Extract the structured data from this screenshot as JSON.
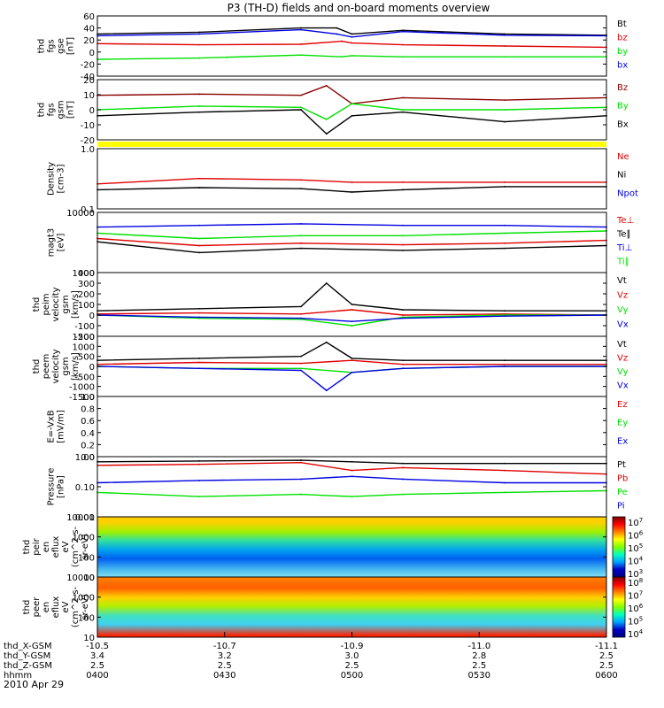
{
  "title": "P3 (TH-D) fields and on-board moments overview",
  "date": "2010 Apr 29",
  "colors": {
    "black": "#000000",
    "red": "#e00000",
    "green": "#00e000",
    "blue": "#0000e0",
    "darkred": "#8b0000",
    "yellow": "#ffff00"
  },
  "chart_data": [
    {
      "type": "line",
      "id": "fgs",
      "ylabel": [
        "thd",
        "fgs",
        "gse",
        "[nT]"
      ],
      "yticks": [
        "60",
        "40",
        "20",
        "0",
        "-20",
        "-40"
      ],
      "ylim": [
        -40,
        60
      ],
      "legend": [
        {
          "label": "Bt",
          "color": "#000000"
        },
        {
          "label": "bz",
          "color": "#e00000"
        },
        {
          "label": "by",
          "color": "#00e000"
        },
        {
          "label": "bx",
          "color": "#0000e0"
        }
      ],
      "series": [
        {
          "name": "Bt",
          "color": "#000000",
          "x": [
            0,
            0.2,
            0.4,
            0.47,
            0.5,
            0.6,
            0.8,
            1
          ],
          "y": [
            30,
            33,
            40,
            40,
            30,
            36,
            30,
            28
          ]
        },
        {
          "name": "bz",
          "color": "#e00000",
          "x": [
            0,
            0.2,
            0.4,
            0.48,
            0.5,
            0.6,
            0.8,
            1
          ],
          "y": [
            14,
            12,
            13,
            18,
            15,
            12,
            10,
            8
          ]
        },
        {
          "name": "by",
          "color": "#00e000",
          "x": [
            0,
            0.2,
            0.4,
            0.48,
            0.5,
            0.6,
            0.8,
            1
          ],
          "y": [
            -12,
            -10,
            -5,
            -8,
            -6,
            -8,
            -8,
            -8
          ]
        },
        {
          "name": "bx",
          "color": "#0000e0",
          "x": [
            0,
            0.2,
            0.4,
            0.47,
            0.5,
            0.6,
            0.8,
            1
          ],
          "y": [
            27,
            30,
            37,
            30,
            25,
            34,
            28,
            27
          ]
        }
      ]
    },
    {
      "type": "line",
      "id": "fgs_gsm",
      "ylabel": [
        "thd",
        "fgs",
        "gsm",
        "[nT]"
      ],
      "yticks": [
        "20",
        "10",
        "0",
        "-10",
        "-20"
      ],
      "ylim": [
        -25,
        25
      ],
      "legend": [
        {
          "label": "Bz",
          "color": "#8b0000"
        },
        {
          "label": "By",
          "color": "#00e000"
        },
        {
          "label": "Bx",
          "color": "#000000"
        }
      ],
      "series": [
        {
          "name": "Bz",
          "color": "#8b0000",
          "x": [
            0,
            0.2,
            0.4,
            0.45,
            0.5,
            0.6,
            0.8,
            1
          ],
          "y": [
            12,
            13,
            12,
            20,
            5,
            10,
            8,
            10
          ]
        },
        {
          "name": "By",
          "color": "#00e000",
          "x": [
            0,
            0.2,
            0.4,
            0.45,
            0.5,
            0.6,
            0.8,
            1
          ],
          "y": [
            0,
            3,
            2,
            -8,
            5,
            0,
            0,
            2
          ]
        },
        {
          "name": "Bx",
          "color": "#000000",
          "x": [
            0,
            0.2,
            0.4,
            0.45,
            0.5,
            0.6,
            0.8,
            1
          ],
          "y": [
            -5,
            -2,
            0,
            -20,
            -5,
            -2,
            -10,
            -5
          ]
        }
      ]
    },
    {
      "type": "line",
      "id": "density",
      "ylabel": [
        "Density",
        "[cm-3]"
      ],
      "yticks": [
        "1.0",
        "0.1"
      ],
      "ylim": [
        0.1,
        1.2
      ],
      "legend": [
        {
          "label": "Ne",
          "color": "#e00000"
        },
        {
          "label": "Ni",
          "color": "#000000"
        },
        {
          "label": "Npot",
          "color": "#0000e0"
        }
      ],
      "series": [
        {
          "name": "Ne",
          "color": "#e00000",
          "x": [
            0,
            0.2,
            0.4,
            0.5,
            0.6,
            0.8,
            1
          ],
          "y": [
            0.28,
            0.35,
            0.33,
            0.3,
            0.3,
            0.3,
            0.3
          ]
        },
        {
          "name": "Ni",
          "color": "#000000",
          "x": [
            0,
            0.2,
            0.4,
            0.5,
            0.6,
            0.8,
            1
          ],
          "y": [
            0.22,
            0.24,
            0.23,
            0.2,
            0.22,
            0.25,
            0.25
          ]
        }
      ]
    },
    {
      "type": "line",
      "id": "temperature",
      "ylabel": [
        "magt3",
        "[eV]"
      ],
      "yticks": [
        "10000",
        "1000"
      ],
      "ylim": [
        700,
        12000
      ],
      "legend": [
        {
          "label": "Te⊥",
          "color": "#e00000"
        },
        {
          "label": "Te∥",
          "color": "#000000"
        },
        {
          "label": "Ti⊥",
          "color": "#0000e0"
        },
        {
          "label": "Ti∥",
          "color": "#00e000"
        }
      ],
      "series": [
        {
          "name": "Ti⊥",
          "color": "#0000e0",
          "x": [
            0,
            0.2,
            0.4,
            0.6,
            0.8,
            1
          ],
          "y": [
            6000,
            6500,
            7000,
            6500,
            6500,
            6000
          ]
        },
        {
          "name": "Ti∥",
          "color": "#00e000",
          "x": [
            0,
            0.2,
            0.4,
            0.6,
            0.8,
            1
          ],
          "y": [
            4500,
            3500,
            4000,
            4000,
            4500,
            5000
          ]
        },
        {
          "name": "Te⊥",
          "color": "#e00000",
          "x": [
            0,
            0.2,
            0.4,
            0.6,
            0.8,
            1
          ],
          "y": [
            3500,
            2500,
            2800,
            2600,
            2800,
            3200
          ]
        },
        {
          "name": "Te∥",
          "color": "#000000",
          "x": [
            0,
            0.2,
            0.4,
            0.6,
            0.8,
            1
          ],
          "y": [
            3000,
            1800,
            2200,
            2000,
            2200,
            2500
          ]
        }
      ]
    },
    {
      "type": "line",
      "id": "peim_velocity",
      "ylabel": [
        "thd",
        "peim",
        "velocity",
        "gsm",
        "[km/s]"
      ],
      "yticks": [
        "400",
        "300",
        "200",
        "100",
        "0",
        "-100",
        "-200"
      ],
      "ylim": [
        -200,
        400
      ],
      "legend": [
        {
          "label": "Vt",
          "color": "#000000"
        },
        {
          "label": "Vz",
          "color": "#e00000"
        },
        {
          "label": "Vy",
          "color": "#00e000"
        },
        {
          "label": "Vx",
          "color": "#0000e0"
        }
      ],
      "series": [
        {
          "name": "Vt",
          "color": "#000000",
          "x": [
            0,
            0.2,
            0.4,
            0.45,
            0.5,
            0.6,
            0.8,
            1
          ],
          "y": [
            40,
            60,
            80,
            300,
            100,
            50,
            40,
            40
          ]
        },
        {
          "name": "Vz",
          "color": "#e00000",
          "x": [
            0,
            0.2,
            0.4,
            0.5,
            0.6,
            0.8,
            1
          ],
          "y": [
            10,
            20,
            10,
            50,
            0,
            10,
            0
          ]
        },
        {
          "name": "Vy",
          "color": "#00e000",
          "x": [
            0,
            0.2,
            0.4,
            0.5,
            0.6,
            0.8,
            1
          ],
          "y": [
            0,
            -30,
            -40,
            -100,
            -20,
            0,
            0
          ]
        },
        {
          "name": "Vx",
          "color": "#0000e0",
          "x": [
            0,
            0.2,
            0.4,
            0.5,
            0.6,
            0.8,
            1
          ],
          "y": [
            0,
            -20,
            -30,
            -60,
            -30,
            -10,
            0
          ]
        }
      ]
    },
    {
      "type": "line",
      "id": "peem_velocity",
      "ylabel": [
        "thd",
        "peem",
        "velocity",
        "gsm",
        "[km/s]"
      ],
      "yticks": [
        "1500",
        "1000",
        "500",
        "0",
        "-500",
        "-1000",
        "-1500"
      ],
      "ylim": [
        -1500,
        1500
      ],
      "legend": [
        {
          "label": "Vt",
          "color": "#000000"
        },
        {
          "label": "Vz",
          "color": "#e00000"
        },
        {
          "label": "Vy",
          "color": "#00e000"
        },
        {
          "label": "Vx",
          "color": "#0000e0"
        }
      ],
      "series": [
        {
          "name": "Vt",
          "color": "#000000",
          "x": [
            0,
            0.2,
            0.4,
            0.45,
            0.5,
            0.6,
            0.8,
            1
          ],
          "y": [
            300,
            400,
            500,
            1200,
            400,
            300,
            300,
            300
          ]
        },
        {
          "name": "Vz",
          "color": "#e00000",
          "x": [
            0,
            0.2,
            0.4,
            0.5,
            0.6,
            0.8,
            1
          ],
          "y": [
            100,
            200,
            150,
            300,
            100,
            100,
            100
          ]
        },
        {
          "name": "Vy",
          "color": "#00e000",
          "x": [
            0,
            0.2,
            0.4,
            0.5,
            0.6,
            0.8,
            1
          ],
          "y": [
            0,
            -100,
            -100,
            -300,
            -100,
            0,
            0
          ]
        },
        {
          "name": "Vx",
          "color": "#0000e0",
          "x": [
            0,
            0.2,
            0.4,
            0.45,
            0.5,
            0.6,
            0.8,
            1
          ],
          "y": [
            0,
            -100,
            -200,
            -1200,
            -300,
            -100,
            0,
            0
          ]
        }
      ]
    },
    {
      "type": "line",
      "id": "efield",
      "ylabel": [
        "E=-VxB",
        "[mV/m]"
      ],
      "yticks": [
        "1.0",
        "0.8",
        "0.6",
        "0.4",
        "0.2",
        "0.0"
      ],
      "ylim": [
        0,
        1
      ],
      "legend": [
        {
          "label": "Ez",
          "color": "#e00000"
        },
        {
          "label": "Ey",
          "color": "#00e000"
        },
        {
          "label": "Ex",
          "color": "#0000e0"
        }
      ],
      "series": []
    },
    {
      "type": "line",
      "id": "pressure",
      "ylabel": [
        "Pressure",
        "[nPa]"
      ],
      "yticks": [
        "1.00",
        "0.10",
        "0.01"
      ],
      "ylim": [
        0.01,
        1.2
      ],
      "legend": [
        {
          "label": "Pt",
          "color": "#000000"
        },
        {
          "label": "Pb",
          "color": "#e00000"
        },
        {
          "label": "Pe",
          "color": "#00e000"
        },
        {
          "label": "Pi",
          "color": "#0000e0"
        }
      ],
      "series": [
        {
          "name": "Pt",
          "color": "#000000",
          "x": [
            0,
            0.2,
            0.4,
            0.5,
            0.6,
            0.8,
            1
          ],
          "y": [
            0.8,
            0.85,
            0.9,
            0.8,
            0.7,
            0.7,
            0.7
          ]
        },
        {
          "name": "Pb",
          "color": "#e00000",
          "x": [
            0,
            0.2,
            0.4,
            0.5,
            0.6,
            0.8,
            1
          ],
          "y": [
            0.6,
            0.65,
            0.75,
            0.4,
            0.5,
            0.4,
            0.3
          ]
        },
        {
          "name": "Pi",
          "color": "#0000e0",
          "x": [
            0,
            0.2,
            0.4,
            0.5,
            0.6,
            0.8,
            1
          ],
          "y": [
            0.15,
            0.18,
            0.2,
            0.25,
            0.2,
            0.15,
            0.15
          ]
        },
        {
          "name": "Pe",
          "color": "#00e000",
          "x": [
            0,
            0.2,
            0.4,
            0.5,
            0.6,
            0.8,
            1
          ],
          "y": [
            0.07,
            0.05,
            0.06,
            0.05,
            0.06,
            0.07,
            0.08
          ]
        }
      ]
    },
    {
      "type": "heatmap",
      "id": "peir_eflux",
      "ylabel": [
        "thd",
        "peir",
        "en",
        "eflux",
        "eV",
        "(cm^2-s-",
        "sr-eV)"
      ],
      "yticks": [
        "10000",
        "1000",
        "100",
        "10"
      ],
      "ylim": [
        10,
        20000
      ],
      "colorbar_ticks": [
        "10^7",
        "10^6",
        "10^5",
        "10^4",
        "10^3"
      ],
      "profile": [
        {
          "e": 10000,
          "c": "#ffd000"
        },
        {
          "e": 3000,
          "c": "#a0f000"
        },
        {
          "e": 1000,
          "c": "#30e0a0"
        },
        {
          "e": 300,
          "c": "#00a0f0"
        },
        {
          "e": 100,
          "c": "#0060f0"
        },
        {
          "e": 30,
          "c": "#40b0f0"
        },
        {
          "e": 10,
          "c": "#80e0f0"
        }
      ]
    },
    {
      "type": "heatmap",
      "id": "peer_eflux",
      "ylabel": [
        "thd",
        "peer",
        "en",
        "eflux",
        "eV",
        "(cm^2-s-",
        "sr-eV)"
      ],
      "yticks": [
        "10000",
        "1000",
        "100",
        "10"
      ],
      "ylim": [
        10,
        20000
      ],
      "colorbar_ticks": [
        "10^8",
        "10^7",
        "10^6",
        "10^5",
        "10^4"
      ],
      "profile": [
        {
          "e": 20000,
          "c": "#ff8000"
        },
        {
          "e": 5000,
          "c": "#ff6000"
        },
        {
          "e": 1500,
          "c": "#ffd000"
        },
        {
          "e": 500,
          "c": "#b0f000"
        },
        {
          "e": 150,
          "c": "#40e0c0"
        },
        {
          "e": 50,
          "c": "#40d0f0"
        },
        {
          "e": 12,
          "c": "#ff2000"
        }
      ]
    }
  ],
  "xaxis": {
    "rows": [
      {
        "label": "thd_X-GSM",
        "values": [
          "-10.5",
          "-10.7",
          "-10.9",
          "-11.0",
          "-11.1"
        ]
      },
      {
        "label": "thd_Y-GSM",
        "values": [
          "3.4",
          "3.2",
          "3.0",
          "2.8",
          "2.5"
        ]
      },
      {
        "label": "thd_Z-GSM",
        "values": [
          "2.5",
          "2.5",
          "2.5",
          "2.5",
          "2.5"
        ]
      },
      {
        "label": "hhmm",
        "values": [
          "0400",
          "0430",
          "0500",
          "0530",
          "0600"
        ]
      }
    ]
  }
}
